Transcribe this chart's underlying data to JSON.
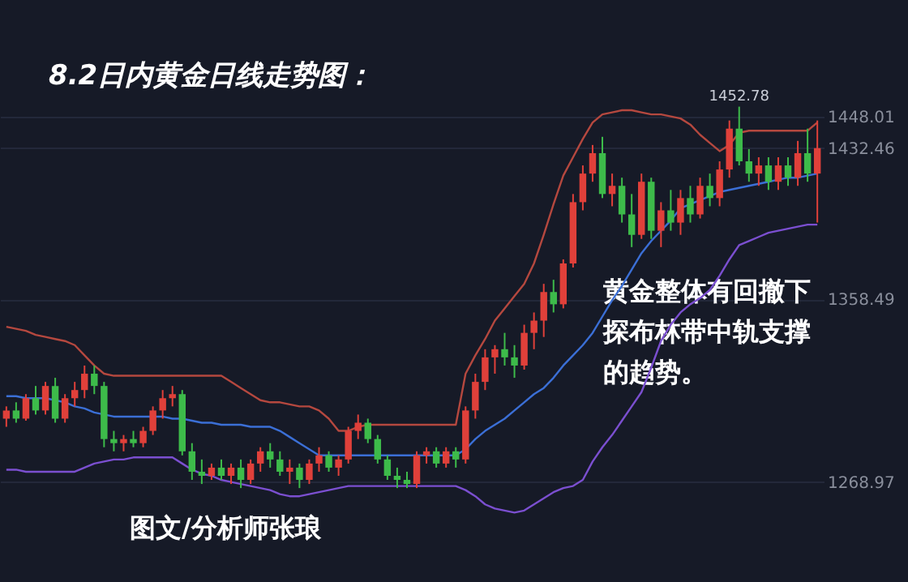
{
  "chart_data": {
    "type": "candlestick",
    "title": "8.2日内黄金日线走势图：",
    "categories": [
      null,
      null,
      null,
      null,
      null,
      null,
      null,
      null,
      null,
      null,
      null,
      null,
      null,
      null,
      null,
      null,
      null,
      null,
      null,
      null,
      null,
      null,
      null,
      null,
      null,
      null,
      null,
      null,
      null,
      null,
      null,
      null,
      null,
      null,
      null,
      null,
      null,
      null,
      null,
      null,
      null,
      null,
      null,
      null,
      null,
      null,
      null,
      null,
      null,
      null,
      null,
      null,
      null,
      null,
      null,
      null,
      null,
      null,
      null,
      null,
      null,
      null,
      null,
      null,
      null,
      null,
      null,
      null,
      null,
      null,
      null,
      null,
      null,
      null,
      null,
      null,
      null,
      null,
      null,
      null,
      null,
      null,
      null,
      null
    ],
    "ohlc": [
      [
        1300,
        1306,
        1296,
        1304
      ],
      [
        1304,
        1308,
        1298,
        1300
      ],
      [
        1300,
        1312,
        1299,
        1310
      ],
      [
        1310,
        1316,
        1302,
        1304
      ],
      [
        1304,
        1318,
        1302,
        1316
      ],
      [
        1316,
        1320,
        1298,
        1300
      ],
      [
        1300,
        1312,
        1298,
        1310
      ],
      [
        1310,
        1318,
        1306,
        1314
      ],
      [
        1314,
        1326,
        1310,
        1322
      ],
      [
        1322,
        1326,
        1312,
        1316
      ],
      [
        1316,
        1318,
        1286,
        1290
      ],
      [
        1290,
        1294,
        1284,
        1288
      ],
      [
        1288,
        1292,
        1284,
        1290
      ],
      [
        1290,
        1294,
        1286,
        1288
      ],
      [
        1288,
        1296,
        1286,
        1294
      ],
      [
        1294,
        1306,
        1292,
        1304
      ],
      [
        1304,
        1314,
        1300,
        1310
      ],
      [
        1310,
        1316,
        1306,
        1312
      ],
      [
        1312,
        1314,
        1282,
        1284
      ],
      [
        1284,
        1288,
        1270,
        1274
      ],
      [
        1274,
        1280,
        1268,
        1272
      ],
      [
        1272,
        1278,
        1270,
        1276
      ],
      [
        1276,
        1280,
        1270,
        1272
      ],
      [
        1272,
        1278,
        1268,
        1276
      ],
      [
        1276,
        1280,
        1266,
        1270
      ],
      [
        1270,
        1280,
        1268,
        1278
      ],
      [
        1278,
        1286,
        1274,
        1284
      ],
      [
        1284,
        1288,
        1276,
        1280
      ],
      [
        1280,
        1284,
        1272,
        1274
      ],
      [
        1274,
        1280,
        1268,
        1276
      ],
      [
        1276,
        1278,
        1266,
        1270
      ],
      [
        1270,
        1280,
        1268,
        1278
      ],
      [
        1278,
        1286,
        1274,
        1282
      ],
      [
        1282,
        1284,
        1274,
        1276
      ],
      [
        1276,
        1282,
        1272,
        1280
      ],
      [
        1280,
        1296,
        1278,
        1294
      ],
      [
        1294,
        1302,
        1290,
        1298
      ],
      [
        1298,
        1300,
        1288,
        1290
      ],
      [
        1290,
        1292,
        1278,
        1280
      ],
      [
        1280,
        1282,
        1270,
        1272
      ],
      [
        1272,
        1276,
        1266,
        1270
      ],
      [
        1270,
        1274,
        1266,
        1268
      ],
      [
        1268,
        1284,
        1266,
        1282
      ],
      [
        1282,
        1286,
        1278,
        1284
      ],
      [
        1284,
        1286,
        1276,
        1278
      ],
      [
        1278,
        1286,
        1276,
        1284
      ],
      [
        1284,
        1286,
        1276,
        1280
      ],
      [
        1280,
        1306,
        1278,
        1304
      ],
      [
        1304,
        1322,
        1300,
        1318
      ],
      [
        1318,
        1334,
        1314,
        1330
      ],
      [
        1330,
        1336,
        1322,
        1334
      ],
      [
        1334,
        1342,
        1326,
        1330
      ],
      [
        1330,
        1336,
        1320,
        1326
      ],
      [
        1326,
        1346,
        1324,
        1342
      ],
      [
        1342,
        1352,
        1334,
        1348
      ],
      [
        1348,
        1366,
        1340,
        1362
      ],
      [
        1362,
        1368,
        1352,
        1356
      ],
      [
        1356,
        1378,
        1354,
        1376
      ],
      [
        1376,
        1410,
        1374,
        1406
      ],
      [
        1406,
        1424,
        1402,
        1420
      ],
      [
        1420,
        1434,
        1416,
        1430
      ],
      [
        1430,
        1438,
        1408,
        1410
      ],
      [
        1410,
        1420,
        1404,
        1414
      ],
      [
        1414,
        1418,
        1396,
        1400
      ],
      [
        1400,
        1410,
        1384,
        1390
      ],
      [
        1390,
        1420,
        1388,
        1416
      ],
      [
        1416,
        1418,
        1388,
        1392
      ],
      [
        1392,
        1406,
        1384,
        1402
      ],
      [
        1402,
        1412,
        1392,
        1396
      ],
      [
        1396,
        1412,
        1390,
        1408
      ],
      [
        1408,
        1414,
        1396,
        1400
      ],
      [
        1400,
        1418,
        1398,
        1414
      ],
      [
        1414,
        1420,
        1404,
        1408
      ],
      [
        1408,
        1426,
        1404,
        1422
      ],
      [
        1422,
        1446,
        1418,
        1442
      ],
      [
        1442,
        1452.78,
        1424,
        1426
      ],
      [
        1426,
        1432,
        1416,
        1420
      ],
      [
        1420,
        1428,
        1414,
        1424
      ],
      [
        1424,
        1428,
        1412,
        1416
      ],
      [
        1416,
        1428,
        1412,
        1424
      ],
      [
        1424,
        1428,
        1414,
        1418
      ],
      [
        1418,
        1436,
        1414,
        1430
      ],
      [
        1430,
        1442,
        1416,
        1420
      ],
      [
        1420,
        1446,
        1396,
        1432.46
      ]
    ],
    "colors": [
      "#e0403a",
      "#3dbb4a",
      "#e0403a",
      "#3dbb4a",
      "#e0403a",
      "#3dbb4a",
      "#e0403a",
      "#e0403a",
      "#e0403a",
      "#3dbb4a",
      "#3dbb4a",
      "#3dbb4a",
      "#e0403a",
      "#3dbb4a",
      "#e0403a",
      "#e0403a",
      "#e0403a",
      "#e0403a",
      "#3dbb4a",
      "#3dbb4a",
      "#3dbb4a",
      "#e0403a",
      "#3dbb4a",
      "#e0403a",
      "#3dbb4a",
      "#e0403a",
      "#e0403a",
      "#3dbb4a",
      "#3dbb4a",
      "#e0403a",
      "#3dbb4a",
      "#e0403a",
      "#e0403a",
      "#3dbb4a",
      "#e0403a",
      "#e0403a",
      "#e0403a",
      "#3dbb4a",
      "#3dbb4a",
      "#3dbb4a",
      "#3dbb4a",
      "#3dbb4a",
      "#e0403a",
      "#e0403a",
      "#3dbb4a",
      "#e0403a",
      "#3dbb4a",
      "#e0403a",
      "#e0403a",
      "#e0403a",
      "#e0403a",
      "#3dbb4a",
      "#3dbb4a",
      "#e0403a",
      "#e0403a",
      "#e0403a",
      "#3dbb4a",
      "#e0403a",
      "#e0403a",
      "#e0403a",
      "#e0403a",
      "#3dbb4a",
      "#e0403a",
      "#3dbb4a",
      "#3dbb4a",
      "#e0403a",
      "#3dbb4a",
      "#e0403a",
      "#3dbb4a",
      "#e0403a",
      "#3dbb4a",
      "#e0403a",
      "#3dbb4a",
      "#e0403a",
      "#e0403a",
      "#3dbb4a",
      "#3dbb4a",
      "#e0403a",
      "#3dbb4a",
      "#e0403a",
      "#3dbb4a",
      "#e0403a",
      "#3dbb4a",
      "#e0403a"
    ],
    "series": [
      {
        "type": "line",
        "color": "#b5483f",
        "values": [
          1345,
          1344,
          1343,
          1341,
          1340,
          1339,
          1338,
          1336,
          1331,
          1326,
          1322,
          1321,
          1321,
          1321,
          1321,
          1321,
          1321,
          1321,
          1321,
          1321,
          1321,
          1321,
          1321,
          1318,
          1315,
          1312,
          1309,
          1308,
          1308,
          1307,
          1306,
          1306,
          1304,
          1300,
          1294,
          1294,
          1296,
          1297,
          1297,
          1297,
          1297,
          1297,
          1297,
          1297,
          1297,
          1297,
          1297,
          1322,
          1331,
          1339,
          1348,
          1354,
          1360,
          1366,
          1376,
          1390,
          1405,
          1419,
          1428,
          1437,
          1445,
          1449,
          1450,
          1451,
          1451,
          1450,
          1449,
          1449,
          1448,
          1447,
          1444,
          1439,
          1435,
          1431,
          1434,
          1440,
          1441,
          1441,
          1441,
          1441,
          1441,
          1441,
          1441,
          1445
        ]
      },
      {
        "type": "line",
        "color": "#3b6fd6",
        "values": [
          1311,
          1311,
          1310,
          1310,
          1310,
          1309,
          1308,
          1306,
          1305,
          1303,
          1302,
          1301,
          1301,
          1301,
          1301,
          1301,
          1301,
          1300,
          1300,
          1299,
          1298,
          1298,
          1297,
          1297,
          1297,
          1296,
          1296,
          1296,
          1294,
          1291,
          1288,
          1285,
          1282,
          1282,
          1282,
          1282,
          1282,
          1282,
          1282,
          1282,
          1282,
          1282,
          1282,
          1282,
          1282,
          1282,
          1282,
          1285,
          1290,
          1294,
          1297,
          1300,
          1304,
          1308,
          1312,
          1315,
          1320,
          1326,
          1331,
          1336,
          1342,
          1350,
          1358,
          1365,
          1373,
          1381,
          1387,
          1392,
          1397,
          1403,
          1405,
          1407,
          1409,
          1411,
          1412,
          1413,
          1414,
          1415,
          1416,
          1417,
          1418,
          1418,
          1419,
          1420
        ]
      },
      {
        "type": "line",
        "color": "#7b4fd0",
        "values": [
          1275,
          1275,
          1274,
          1274,
          1274,
          1274,
          1274,
          1274,
          1276,
          1278,
          1279,
          1280,
          1280,
          1281,
          1281,
          1281,
          1281,
          1281,
          1278,
          1275,
          1273,
          1272,
          1270,
          1269,
          1268,
          1267,
          1266,
          1265,
          1263,
          1262,
          1262,
          1263,
          1264,
          1265,
          1266,
          1267,
          1267,
          1267,
          1267,
          1267,
          1267,
          1267,
          1267,
          1267,
          1267,
          1267,
          1267,
          1265,
          1262,
          1258,
          1256,
          1255,
          1254,
          1255,
          1258,
          1261,
          1264,
          1266,
          1267,
          1270,
          1279,
          1286,
          1292,
          1299,
          1306,
          1313,
          1325,
          1338,
          1346,
          1352,
          1356,
          1359,
          1363,
          1370,
          1378,
          1385,
          1387,
          1389,
          1391,
          1392,
          1393,
          1394,
          1395,
          1395
        ]
      }
    ],
    "ylim": [
      1220,
      1505
    ],
    "yticks": [
      1268.97,
      1358.49,
      1432.46,
      1448.01
    ],
    "grid": "y",
    "tick_labels": "y",
    "annotations": [
      {
        "text": "1452.78",
        "y": 1452.78
      },
      "黄金整体有回撤下",
      "探布林带中轨支撑",
      "的趋势。",
      "图文/分析师张琅"
    ]
  }
}
